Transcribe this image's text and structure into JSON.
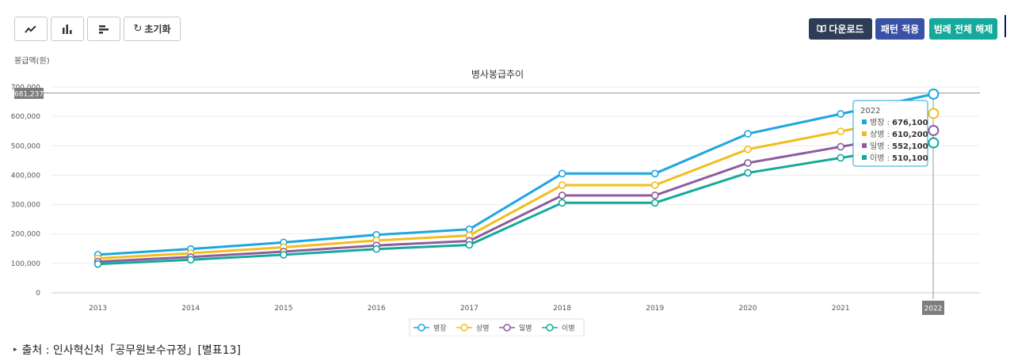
{
  "toolbar": {
    "line_icon": "line-chart-icon",
    "bar_icon": "bar-chart-icon",
    "hbar_icon": "horizontal-bar-icon",
    "reset_label": "초기화",
    "download_label": "다운로드",
    "pattern_label": "패턴 적용",
    "legend_label": "범례 전체 해제"
  },
  "crosshair_value": "681,237",
  "tooltip": {
    "title": "2022",
    "rows": [
      {
        "label": "병장",
        "value": "676,100"
      },
      {
        "label": "상병",
        "value": "610,200"
      },
      {
        "label": "일병",
        "value": "552,100"
      },
      {
        "label": "이병",
        "value": "510,100"
      }
    ]
  },
  "source": {
    "label": "출처 : 인사혁신처「공무원보수규정」[별표13]"
  },
  "colors": {
    "병장": "#1da6e0",
    "상병": "#f2bd1d",
    "일병": "#8e5c9f",
    "이병": "#14a99a",
    "download": "#2f3c57",
    "pattern": "#3a52a6",
    "legend_toggle": "#14a99a"
  },
  "chart_data": {
    "type": "line",
    "title": "병사봉급추이",
    "ylabel": "봉급액(원)",
    "xlabel": "",
    "categories": [
      "2013",
      "2014",
      "2015",
      "2016",
      "2017",
      "2018",
      "2019",
      "2020",
      "2021",
      "2022"
    ],
    "ylim": [
      0,
      700000
    ],
    "yticks": [
      0,
      100000,
      200000,
      300000,
      400000,
      500000,
      600000,
      700000
    ],
    "ytick_labels": [
      "0",
      "100,000",
      "200,000",
      "300,000",
      "400,000",
      "500,000",
      "600,000",
      "700,000"
    ],
    "grid": true,
    "legend_position": "bottom",
    "series": [
      {
        "name": "병장",
        "values": [
          129600,
          149000,
          171400,
          197100,
          216000,
          405700,
          405700,
          540900,
          608500,
          676100
        ]
      },
      {
        "name": "상병",
        "values": [
          117000,
          134600,
          154800,
          178000,
          195000,
          366200,
          366200,
          488200,
          549200,
          610200
        ]
      },
      {
        "name": "일병",
        "values": [
          105800,
          121700,
          140000,
          161000,
          176400,
          331300,
          331300,
          441700,
          496900,
          552100
        ]
      },
      {
        "name": "이병",
        "values": [
          97800,
          112500,
          129400,
          148800,
          163000,
          306100,
          306100,
          408100,
          459100,
          510100
        ]
      }
    ]
  }
}
